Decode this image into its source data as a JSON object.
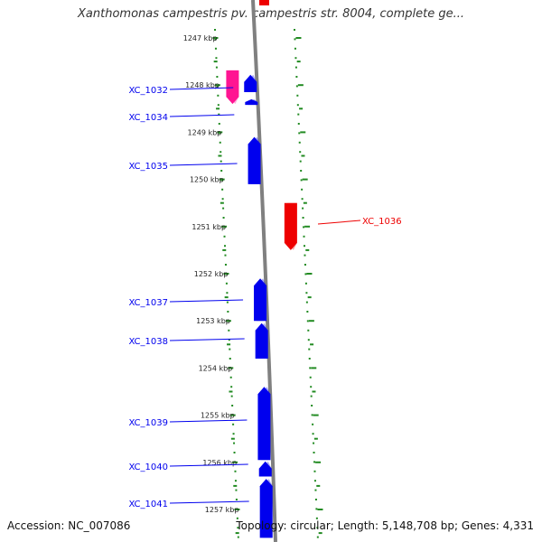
{
  "title": "Xanthomonas campestris pv. campestris str. 8004, complete ge...",
  "footer": {
    "accession": "Accession: NC_007086",
    "topology": "Topology: circular; Length: 5,148,708 bp; Genes: 4,331"
  },
  "colors": {
    "forward_gene": "#0000ee",
    "reverse_gene": "#ee0000",
    "highlight_gene": "#ff1493",
    "backbone": "#808080",
    "tick": "#228b22"
  },
  "scale_ticks": [
    "1247 kbp",
    "1248 kbp",
    "1249 kbp",
    "1250 kbp",
    "1251 kbp",
    "1252 kbp",
    "1253 kbp",
    "1254 kbp",
    "1255 kbp",
    "1256 kbp",
    "1257 kbp"
  ],
  "genes": [
    {
      "id": "XC_1032",
      "strand": "forward",
      "start": 1247.78,
      "end": 1248.15
    },
    {
      "id": "XC_1034",
      "strand": "forward",
      "start": 1248.3,
      "end": 1248.42
    },
    {
      "id": "XC_1035",
      "strand": "forward",
      "start": 1249.1,
      "end": 1250.1
    },
    {
      "id": "XC_1036",
      "strand": "reverse",
      "start": 1250.5,
      "end": 1251.5
    },
    {
      "id": "XC_1037",
      "strand": "forward",
      "start": 1252.1,
      "end": 1253.0
    },
    {
      "id": "XC_1038",
      "strand": "forward",
      "start": 1253.05,
      "end": 1253.8
    },
    {
      "id": "XC_1039",
      "strand": "forward",
      "start": 1254.4,
      "end": 1255.95
    },
    {
      "id": "XC_1040",
      "strand": "forward",
      "start": 1255.98,
      "end": 1256.3
    },
    {
      "id": "XC_1041",
      "strand": "forward",
      "start": 1256.35,
      "end": 1257.6
    }
  ],
  "highlight_gene": {
    "strand": "forward",
    "start": 1247.65,
    "end": 1248.4
  }
}
